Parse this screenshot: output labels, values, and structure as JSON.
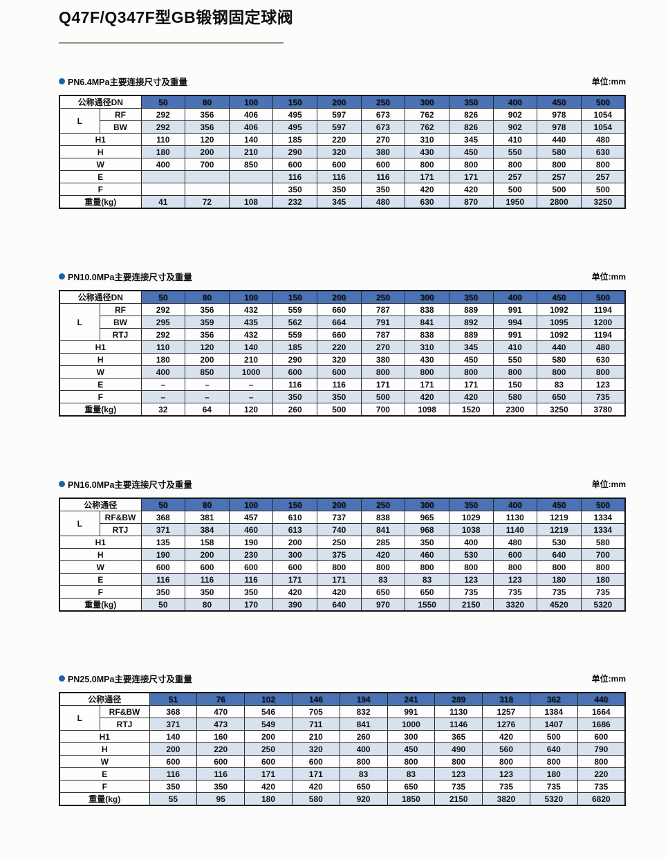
{
  "page": {
    "title": "Q47F/Q347F型GB锻钢固定球阀",
    "unit_label": "单位:mm"
  },
  "colors": {
    "header_bg": "#4a72b4",
    "stripe_bg": "#d8e1ee",
    "bullet": "#1b63a8",
    "rule": "#9a8b8b"
  },
  "tables": [
    {
      "section_title": "PN6.4MPa主要连接尺寸及重量",
      "header_label": "公称通径DN",
      "label_widths": [
        58,
        60
      ],
      "columns": [
        "50",
        "80",
        "100",
        "150",
        "200",
        "250",
        "300",
        "350",
        "400",
        "450",
        "500"
      ],
      "rows": [
        {
          "label": "L",
          "subrows": [
            {
              "label": "RF",
              "values": [
                "292",
                "356",
                "406",
                "495",
                "597",
                "673",
                "762",
                "826",
                "902",
                "978",
                "1054"
              ]
            },
            {
              "label": "BW",
              "values": [
                "292",
                "356",
                "406",
                "495",
                "597",
                "673",
                "762",
                "826",
                "902",
                "978",
                "1054"
              ]
            }
          ]
        },
        {
          "label": "H1",
          "values": [
            "110",
            "120",
            "140",
            "185",
            "220",
            "270",
            "310",
            "345",
            "410",
            "440",
            "480"
          ]
        },
        {
          "label": "H",
          "values": [
            "180",
            "200",
            "210",
            "290",
            "320",
            "380",
            "430",
            "450",
            "550",
            "580",
            "630"
          ]
        },
        {
          "label": "W",
          "values": [
            "400",
            "700",
            "850",
            "600",
            "600",
            "600",
            "800",
            "800",
            "800",
            "800",
            "800"
          ]
        },
        {
          "label": "E",
          "values": [
            "",
            "",
            "",
            "116",
            "116",
            "116",
            "171",
            "171",
            "257",
            "257",
            "257"
          ]
        },
        {
          "label": "F",
          "values": [
            "",
            "",
            "",
            "350",
            "350",
            "350",
            "420",
            "420",
            "500",
            "500",
            "500"
          ]
        },
        {
          "label": "重量(kg)",
          "values": [
            "41",
            "72",
            "108",
            "232",
            "345",
            "480",
            "630",
            "870",
            "1950",
            "2800",
            "3250"
          ]
        }
      ]
    },
    {
      "section_title": "PN10.0MPa主要连接尺寸及重量",
      "header_label": "公称通径DN",
      "label_widths": [
        58,
        60
      ],
      "columns": [
        "50",
        "80",
        "100",
        "150",
        "200",
        "250",
        "300",
        "350",
        "400",
        "450",
        "500"
      ],
      "rows": [
        {
          "label": "L",
          "subrows": [
            {
              "label": "RF",
              "values": [
                "292",
                "356",
                "432",
                "559",
                "660",
                "787",
                "838",
                "889",
                "991",
                "1092",
                "1194"
              ]
            },
            {
              "label": "BW",
              "values": [
                "295",
                "359",
                "435",
                "562",
                "664",
                "791",
                "841",
                "892",
                "994",
                "1095",
                "1200"
              ]
            },
            {
              "label": "RTJ",
              "values": [
                "292",
                "356",
                "432",
                "559",
                "660",
                "787",
                "838",
                "889",
                "991",
                "1092",
                "1194"
              ]
            }
          ]
        },
        {
          "label": "H1",
          "values": [
            "110",
            "120",
            "140",
            "185",
            "220",
            "270",
            "310",
            "345",
            "410",
            "440",
            "480"
          ]
        },
        {
          "label": "H",
          "values": [
            "180",
            "200",
            "210",
            "290",
            "320",
            "380",
            "430",
            "450",
            "550",
            "580",
            "630"
          ]
        },
        {
          "label": "W",
          "values": [
            "400",
            "850",
            "1000",
            "600",
            "600",
            "800",
            "800",
            "800",
            "800",
            "800",
            "800"
          ]
        },
        {
          "label": "E",
          "values": [
            "–",
            "–",
            "–",
            "116",
            "116",
            "171",
            "171",
            "171",
            "150",
            "83",
            "123"
          ]
        },
        {
          "label": "F",
          "values": [
            "–",
            "–",
            "–",
            "350",
            "350",
            "500",
            "420",
            "420",
            "580",
            "650",
            "735"
          ]
        },
        {
          "label": "重量(kg)",
          "values": [
            "32",
            "64",
            "120",
            "260",
            "500",
            "700",
            "1098",
            "1520",
            "2300",
            "3250",
            "3780"
          ]
        }
      ]
    },
    {
      "section_title": "PN16.0MPa主要连接尺寸及重量",
      "header_label": "公称通径",
      "label_widths": [
        58,
        60
      ],
      "columns": [
        "50",
        "80",
        "100",
        "150",
        "200",
        "250",
        "300",
        "350",
        "400",
        "450",
        "500"
      ],
      "rows": [
        {
          "label": "L",
          "subrows": [
            {
              "label": "RF&BW",
              "values": [
                "368",
                "381",
                "457",
                "610",
                "737",
                "838",
                "965",
                "1029",
                "1130",
                "1219",
                "1334"
              ]
            },
            {
              "label": "RTJ",
              "values": [
                "371",
                "384",
                "460",
                "613",
                "740",
                "841",
                "968",
                "1038",
                "1140",
                "1219",
                "1334"
              ]
            }
          ]
        },
        {
          "label": "H1",
          "values": [
            "135",
            "158",
            "190",
            "200",
            "250",
            "285",
            "350",
            "400",
            "480",
            "530",
            "580"
          ]
        },
        {
          "label": "H",
          "values": [
            "190",
            "200",
            "230",
            "300",
            "375",
            "420",
            "460",
            "530",
            "600",
            "640",
            "700"
          ]
        },
        {
          "label": "W",
          "values": [
            "600",
            "600",
            "600",
            "600",
            "800",
            "800",
            "800",
            "800",
            "800",
            "800",
            "800"
          ]
        },
        {
          "label": "E",
          "values": [
            "116",
            "116",
            "116",
            "171",
            "171",
            "83",
            "83",
            "123",
            "123",
            "180",
            "180"
          ]
        },
        {
          "label": "F",
          "values": [
            "350",
            "350",
            "350",
            "420",
            "420",
            "650",
            "650",
            "735",
            "735",
            "735",
            "735"
          ]
        },
        {
          "label": "重量(kg)",
          "values": [
            "50",
            "80",
            "170",
            "390",
            "640",
            "970",
            "1550",
            "2150",
            "3320",
            "4520",
            "5320"
          ]
        }
      ]
    },
    {
      "section_title": "PN25.0MPa主要连接尺寸及重量",
      "header_label": "公称通径",
      "label_widths": [
        58,
        72
      ],
      "columns": [
        "51",
        "76",
        "102",
        "146",
        "194",
        "241",
        "289",
        "318",
        "362",
        "440"
      ],
      "rows": [
        {
          "label": "L",
          "subrows": [
            {
              "label": "RF&BW",
              "values": [
                "368",
                "470",
                "546",
                "705",
                "832",
                "991",
                "1130",
                "1257",
                "1384",
                "1664"
              ]
            },
            {
              "label": "RTJ",
              "values": [
                "371",
                "473",
                "549",
                "711",
                "841",
                "1000",
                "1146",
                "1276",
                "1407",
                "1686"
              ]
            }
          ]
        },
        {
          "label": "H1",
          "values": [
            "140",
            "160",
            "200",
            "210",
            "260",
            "300",
            "365",
            "420",
            "500",
            "600"
          ]
        },
        {
          "label": "H",
          "values": [
            "200",
            "220",
            "250",
            "320",
            "400",
            "450",
            "490",
            "560",
            "640",
            "790"
          ]
        },
        {
          "label": "W",
          "values": [
            "600",
            "600",
            "600",
            "600",
            "800",
            "800",
            "800",
            "800",
            "800",
            "800"
          ]
        },
        {
          "label": "E",
          "values": [
            "116",
            "116",
            "171",
            "171",
            "83",
            "83",
            "123",
            "123",
            "180",
            "220"
          ]
        },
        {
          "label": "F",
          "values": [
            "350",
            "350",
            "420",
            "420",
            "650",
            "650",
            "735",
            "735",
            "735",
            "735"
          ]
        },
        {
          "label": "重量(kg)",
          "values": [
            "55",
            "95",
            "180",
            "580",
            "920",
            "1850",
            "2150",
            "3820",
            "5320",
            "6820"
          ]
        }
      ]
    }
  ]
}
